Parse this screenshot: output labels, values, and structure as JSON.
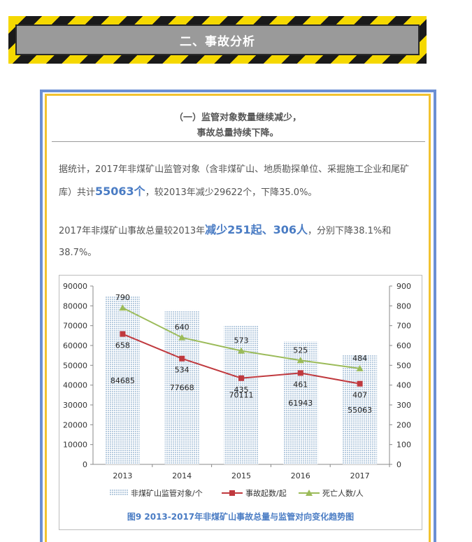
{
  "banner": {
    "title": "二、事故分析"
  },
  "section": {
    "subtitle_line1": "（一）监管对象数量继续减少，",
    "subtitle_line2": "事故总量持续下降。"
  },
  "paragraph1": {
    "text_before": "据统计，2017年非煤矿山监管对象（含非煤矿山、地质勘探单位、采掘施工企业和尾矿库）共计",
    "highlight": "55063个",
    "text_after": "，较2013年减少29622个，下降35.0%。"
  },
  "paragraph2": {
    "text_before": "2017年非煤矿山事故总量较2013年",
    "highlight": "减少251起、306人",
    "text_after": "，分别下降38.1%和38.7%。"
  },
  "colors": {
    "bar": "#b9cde0",
    "accidents": "#c0393e",
    "deaths": "#9bbb59",
    "accent": "#4a7cc4"
  },
  "chart_data": {
    "type": "bar",
    "title": "图9  2013-2017年非煤矿山事故总量与监管对向变化趋势图",
    "categories": [
      "2013",
      "2014",
      "2015",
      "2016",
      "2017"
    ],
    "series": [
      {
        "name": "非煤矿山监管对象/个",
        "type": "bar",
        "axis": "left",
        "values": [
          84685,
          77668,
          70111,
          61943,
          55063
        ]
      },
      {
        "name": "事故起数/起",
        "type": "line",
        "axis": "right",
        "values": [
          658,
          534,
          435,
          461,
          407
        ]
      },
      {
        "name": "死亡人数/人",
        "type": "line",
        "axis": "right",
        "values": [
          790,
          640,
          573,
          525,
          484
        ]
      }
    ],
    "y_left": {
      "lim": [
        0,
        90000
      ],
      "ticks": [
        "0",
        "10000",
        "20000",
        "30000",
        "40000",
        "50000",
        "60000",
        "70000",
        "80000",
        "90000"
      ]
    },
    "y_right": {
      "lim": [
        0,
        900
      ],
      "ticks": [
        "0",
        "100",
        "200",
        "300",
        "400",
        "500",
        "600",
        "700",
        "800",
        "900"
      ]
    },
    "grid": false,
    "legend": "bottom"
  }
}
